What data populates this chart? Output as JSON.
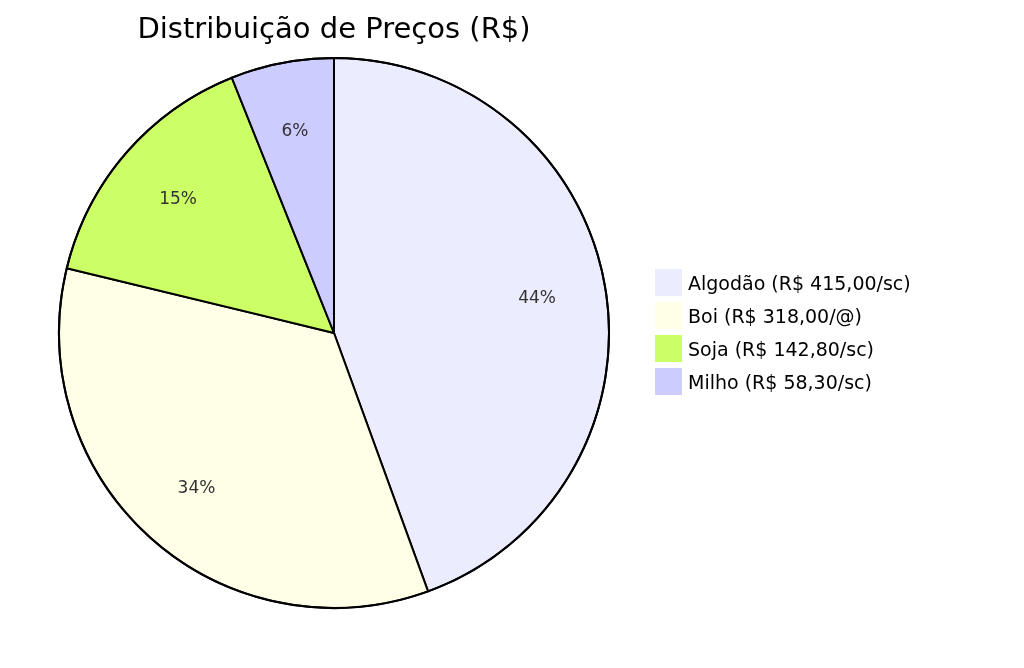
{
  "chart_data": {
    "type": "pie",
    "title": "Distribuição de Preços (R$)",
    "categories": [
      "Algodão (R$ 415,00/sc)",
      "Boi (R$ 318,00/@)",
      "Soja (R$ 142,80/sc)",
      "Milho (R$ 58,30/sc)"
    ],
    "values": [
      44,
      34,
      15,
      6
    ],
    "colors": [
      "#ececff",
      "#ffffe8",
      "#ccff66",
      "#ccccff"
    ],
    "value_labels": [
      "44%",
      "34%",
      "15%",
      "6%"
    ],
    "legend": "right"
  }
}
